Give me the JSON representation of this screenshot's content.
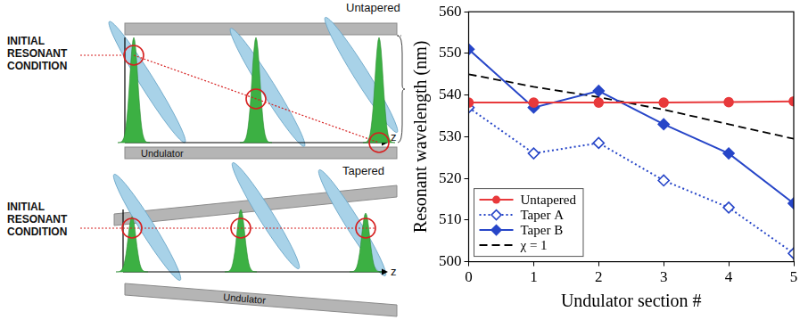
{
  "diagram": {
    "panels": [
      {
        "title": "Untapered",
        "condition_label": "INITIAL RESONANT CONDITION",
        "undulator_label": "Undulator",
        "axis_label": "z"
      },
      {
        "title": "Tapered",
        "condition_label": "INITIAL RESONANT CONDITION",
        "undulator_label": "Undulator",
        "axis_label": "z"
      }
    ]
  },
  "chart_data": {
    "type": "line",
    "x_label": "Undulator section #",
    "y_label": "Resonant wavelength (nm)",
    "x": [
      0,
      1,
      2,
      3,
      4,
      5
    ],
    "xlim": [
      0,
      5
    ],
    "xticks": [
      0,
      1,
      2,
      3,
      4,
      5
    ],
    "ylim": [
      500,
      560
    ],
    "yticks": [
      500,
      510,
      520,
      530,
      540,
      550,
      560
    ],
    "grid": false,
    "legend": "lower left",
    "series": [
      {
        "name": "Untapered",
        "color": "#e8393b",
        "marker": "circle",
        "line_style": "solid",
        "values": [
          538.2,
          538.2,
          538.2,
          538.2,
          538.3,
          538.5
        ]
      },
      {
        "name": "Taper A",
        "color": "#2746c8",
        "marker": "open_diamond",
        "line_style": "dotted",
        "values": [
          537,
          526,
          528.5,
          519.5,
          513,
          502
        ]
      },
      {
        "name": "Taper B",
        "color": "#2746c8",
        "marker": "diamond",
        "line_style": "solid",
        "values": [
          551,
          537,
          541,
          533,
          526,
          514
        ]
      },
      {
        "name": "χ = 1",
        "color": "#000000",
        "marker": "none",
        "line_style": "dashed",
        "values": [
          545,
          542,
          539.5,
          536.5,
          533,
          529.5
        ]
      }
    ]
  }
}
